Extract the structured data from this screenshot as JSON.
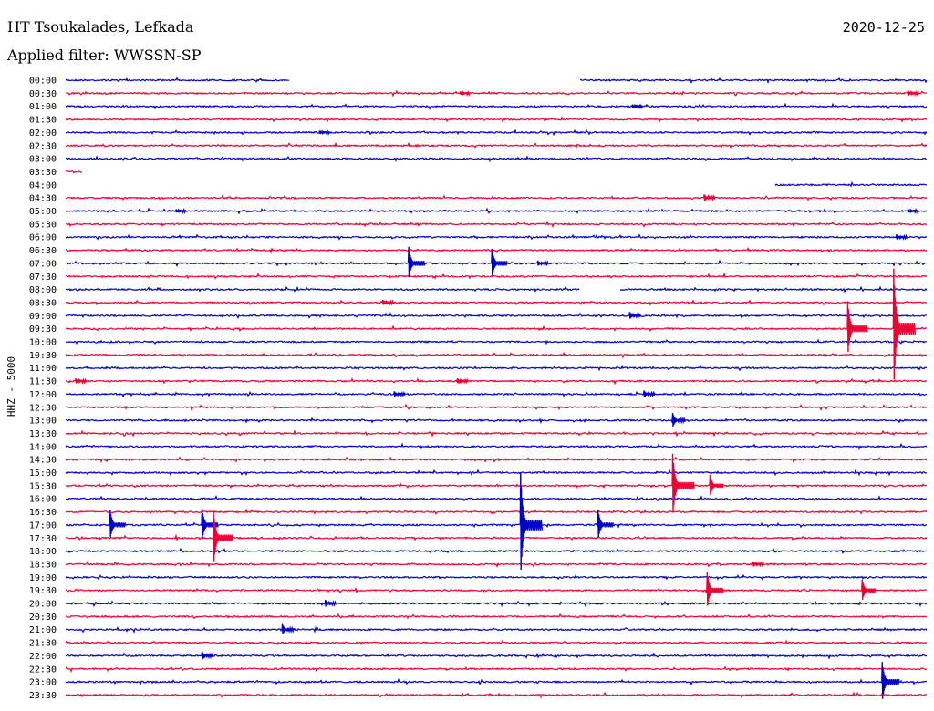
{
  "header": {
    "station": "HT Tsoukalades, Lefkada",
    "date": "2020-12-25",
    "filter": "Applied filter: WWSSN-SP"
  },
  "chart_data": {
    "type": "line",
    "channel_label": "HHZ - 5000",
    "row_labels": [
      "00:00",
      "00:30",
      "01:00",
      "01:30",
      "02:00",
      "02:30",
      "03:00",
      "03:30",
      "04:00",
      "04:30",
      "05:00",
      "05:30",
      "06:00",
      "06:30",
      "07:00",
      "07:30",
      "08:00",
      "08:30",
      "09:00",
      "09:30",
      "10:00",
      "10:30",
      "11:00",
      "11:30",
      "12:00",
      "12:30",
      "13:00",
      "13:30",
      "14:00",
      "14:30",
      "15:00",
      "15:30",
      "16:00",
      "16:30",
      "17:00",
      "17:30",
      "18:00",
      "18:30",
      "19:00",
      "19:30",
      "20:00",
      "20:30",
      "21:00",
      "21:30",
      "22:00",
      "22:30",
      "23:00",
      "23:30"
    ],
    "x_unit": "minutes past row start",
    "xlim": [
      0,
      30
    ],
    "colors": {
      "even_rows": "#0000cc",
      "odd_rows": "#ee0033",
      "text": "#000000"
    },
    "data_gaps": [
      {
        "row": "00:00",
        "from": 7.8,
        "to": 17.9
      },
      {
        "row": "03:30",
        "from": 0.6,
        "to": 30
      },
      {
        "row": "04:00",
        "from": 0,
        "to": 24.7
      },
      {
        "row": "08:00",
        "from": 17.9,
        "to": 19.3
      }
    ],
    "events": [
      {
        "row": "00:30",
        "minute": 13.8,
        "amplitude": 2
      },
      {
        "row": "00:30",
        "minute": 29.4,
        "amplitude": 3
      },
      {
        "row": "01:00",
        "minute": 19.8,
        "amplitude": 2
      },
      {
        "row": "02:00",
        "minute": 8.9,
        "amplitude": 2
      },
      {
        "row": "04:30",
        "minute": 22.3,
        "amplitude": 4
      },
      {
        "row": "05:00",
        "minute": 3.9,
        "amplitude": 2
      },
      {
        "row": "05:00",
        "minute": 29.4,
        "amplitude": 2
      },
      {
        "row": "06:00",
        "minute": 29.0,
        "amplitude": 3
      },
      {
        "row": "07:00",
        "minute": 12.0,
        "amplitude": 18
      },
      {
        "row": "07:00",
        "minute": 14.9,
        "amplitude": 16
      },
      {
        "row": "07:00",
        "minute": 16.5,
        "amplitude": 3
      },
      {
        "row": "08:30",
        "minute": 11.1,
        "amplitude": 3
      },
      {
        "row": "09:00",
        "minute": 19.7,
        "amplitude": 4
      },
      {
        "row": "09:30",
        "minute": 27.3,
        "amplitude": 30
      },
      {
        "row": "09:30",
        "minute": 28.9,
        "amplitude": 66
      },
      {
        "row": "11:30",
        "minute": 0.4,
        "amplitude": 3
      },
      {
        "row": "11:30",
        "minute": 13.7,
        "amplitude": 3
      },
      {
        "row": "12:00",
        "minute": 11.5,
        "amplitude": 3
      },
      {
        "row": "12:00",
        "minute": 20.2,
        "amplitude": 4
      },
      {
        "row": "13:00",
        "minute": 21.2,
        "amplitude": 8
      },
      {
        "row": "15:30",
        "minute": 21.2,
        "amplitude": 35
      },
      {
        "row": "15:30",
        "minute": 22.5,
        "amplitude": 12
      },
      {
        "row": "17:00",
        "minute": 1.6,
        "amplitude": 16
      },
      {
        "row": "17:00",
        "minute": 4.8,
        "amplitude": 18
      },
      {
        "row": "17:00",
        "minute": 15.9,
        "amplitude": 58
      },
      {
        "row": "17:00",
        "minute": 18.6,
        "amplitude": 16
      },
      {
        "row": "17:30",
        "minute": 5.2,
        "amplitude": 30
      },
      {
        "row": "18:30",
        "minute": 24.0,
        "amplitude": 3
      },
      {
        "row": "19:30",
        "minute": 22.4,
        "amplitude": 20
      },
      {
        "row": "19:30",
        "minute": 27.8,
        "amplitude": 12
      },
      {
        "row": "20:00",
        "minute": 9.1,
        "amplitude": 4
      },
      {
        "row": "21:00",
        "minute": 7.6,
        "amplitude": 6
      },
      {
        "row": "22:00",
        "minute": 4.8,
        "amplitude": 5
      },
      {
        "row": "23:00",
        "minute": 28.5,
        "amplitude": 22
      }
    ]
  }
}
